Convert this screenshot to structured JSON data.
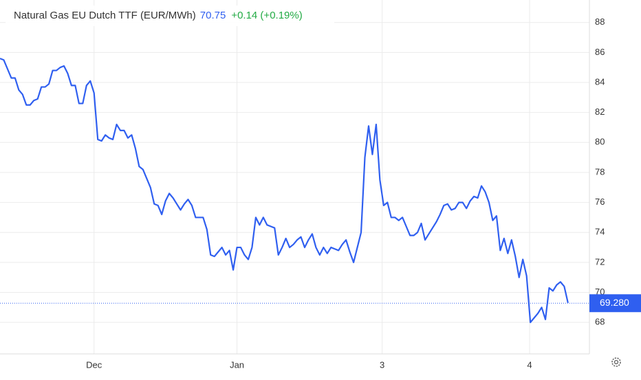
{
  "chart_data": {
    "type": "line",
    "title": "Natural Gas EU Dutch TTF (EUR/MWh)",
    "price": "70.75",
    "change": "+0.14 (+0.19%)",
    "last_price": {
      "value": 69.28,
      "label": "69.280"
    },
    "x": [
      0,
      1,
      2,
      3,
      4,
      5,
      6,
      7,
      8,
      9,
      10,
      11,
      12,
      13,
      14,
      15,
      16,
      17,
      18,
      19,
      20,
      21,
      22,
      23,
      24,
      25,
      26,
      27,
      28,
      29,
      30,
      31,
      32,
      33,
      34,
      35,
      36,
      37,
      38,
      39,
      40,
      41,
      42,
      43,
      44,
      45,
      46,
      47,
      48,
      49,
      50,
      51,
      52,
      53,
      54,
      55,
      56,
      57,
      58,
      59,
      60,
      61,
      62,
      63,
      64,
      65,
      66,
      67,
      68,
      69,
      70,
      71,
      72,
      73,
      74,
      75,
      76,
      77,
      78,
      79,
      80,
      81,
      82,
      83,
      84,
      85,
      86,
      87,
      88,
      89,
      90,
      91,
      92,
      93,
      94,
      95,
      96,
      97,
      98,
      99,
      100,
      101,
      102,
      103,
      104,
      105,
      106,
      107,
      108,
      109,
      110,
      111,
      112,
      113,
      114,
      115,
      116,
      117,
      118,
      119,
      120,
      121,
      122,
      123,
      124,
      125,
      126,
      127,
      128,
      129,
      130,
      131,
      132,
      133,
      134,
      135,
      136,
      137,
      138,
      139,
      140,
      141,
      142,
      143,
      144,
      145,
      146,
      147,
      148,
      149,
      150,
      151
    ],
    "series": [
      {
        "name": "Natural Gas EU Dutch TTF",
        "color": "#2f5ff0",
        "values": [
          85.6,
          85.5,
          84.9,
          84.3,
          84.3,
          83.5,
          83.2,
          82.5,
          82.5,
          82.8,
          82.9,
          83.7,
          83.7,
          83.9,
          84.8,
          84.8,
          85.0,
          85.1,
          84.6,
          83.8,
          83.8,
          82.6,
          82.6,
          83.8,
          84.1,
          83.3,
          80.2,
          80.1,
          80.5,
          80.3,
          80.2,
          81.2,
          80.8,
          80.8,
          80.3,
          80.5,
          79.6,
          78.4,
          78.2,
          77.6,
          77.0,
          75.9,
          75.8,
          75.2,
          76.1,
          76.6,
          76.3,
          75.9,
          75.5,
          75.9,
          76.2,
          75.8,
          75.0,
          75.0,
          75.0,
          74.2,
          72.5,
          72.4,
          72.7,
          73.0,
          72.5,
          72.8,
          71.5,
          73.0,
          73.0,
          72.5,
          72.2,
          73.0,
          75.0,
          74.5,
          75.0,
          74.5,
          74.4,
          74.3,
          72.5,
          73.0,
          73.6,
          73.0,
          73.2,
          73.5,
          73.7,
          73.0,
          73.5,
          73.9,
          73.0,
          72.5,
          73.0,
          72.6,
          73.0,
          72.9,
          72.8,
          73.2,
          73.5,
          72.7,
          72.0,
          73.0,
          74.0,
          79.0,
          81.1,
          79.2,
          81.2,
          77.5,
          75.8,
          76.0,
          75.0,
          75.0,
          74.8,
          75.0,
          74.4,
          73.8,
          73.8,
          74.0,
          74.6,
          73.5,
          73.9,
          74.3,
          74.7,
          75.2,
          75.8,
          75.9,
          75.5,
          75.6,
          76.0,
          76.0,
          75.6,
          76.1,
          76.4,
          76.3,
          77.1,
          76.7,
          76.0,
          74.8,
          75.1,
          72.8,
          73.6,
          72.6,
          73.5,
          72.4,
          71.0,
          72.2,
          71.1,
          68.0,
          68.3,
          68.6,
          69.0,
          68.2,
          70.3,
          70.1,
          70.5,
          70.7,
          70.4,
          69.3
        ]
      }
    ],
    "xlim": [
      0,
      156.7
    ],
    "xticks": [
      {
        "value": 25,
        "label": "Dec"
      },
      {
        "value": 63,
        "label": "Jan"
      },
      {
        "value": 101.6,
        "label": "3"
      },
      {
        "value": 140.8,
        "label": "4"
      }
    ],
    "ylim": [
      65.9,
      89.5
    ],
    "yticks": [
      68,
      70,
      72,
      74,
      76,
      78,
      80,
      82,
      84,
      86,
      88
    ],
    "grid": true
  }
}
